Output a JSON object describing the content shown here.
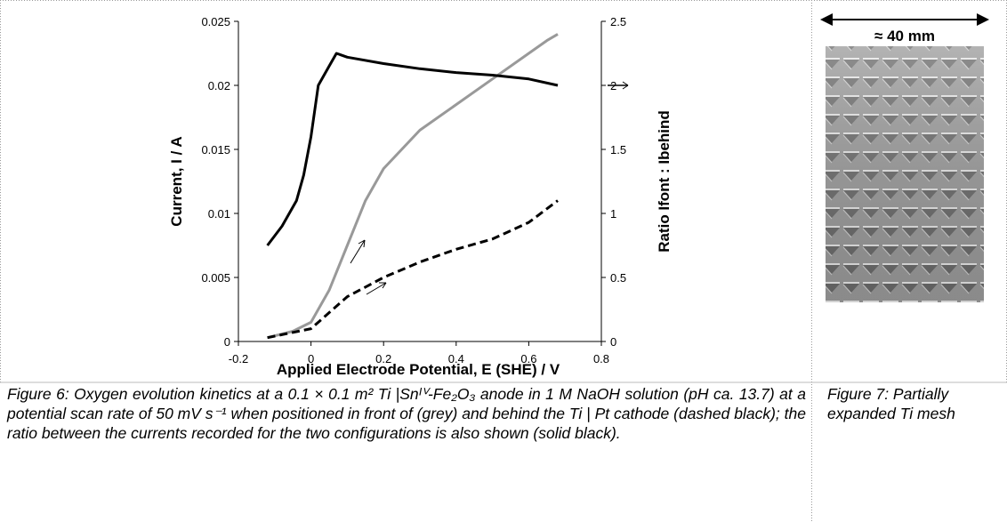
{
  "chart_data": {
    "type": "line",
    "x_label": "Applied Electrode Potential, E (SHE) / V",
    "y_label": "Current, I / A",
    "y2_label": "Ratio Ifont : Ibehind",
    "xlim": [
      -0.2,
      0.8
    ],
    "xticks": [
      -0.2,
      0,
      0.2,
      0.4,
      0.6,
      0.8
    ],
    "ylim": [
      0,
      0.025
    ],
    "yticks": [
      0,
      0.005,
      0.01,
      0.015,
      0.02,
      0.025
    ],
    "y2lim": [
      0,
      2.5
    ],
    "y2ticks": [
      0,
      0.5,
      1,
      1.5,
      2,
      2.5
    ],
    "series": [
      {
        "color": "#999999",
        "dash": false,
        "x": [
          -0.12,
          -0.05,
          0,
          0.05,
          0.1,
          0.15,
          0.2,
          0.3,
          0.4,
          0.5,
          0.6,
          0.65,
          0.68
        ],
        "values": [
          0.0003,
          0.0008,
          0.0015,
          0.004,
          0.0075,
          0.011,
          0.0135,
          0.0165,
          0.0185,
          0.0205,
          0.0225,
          0.0235,
          0.024
        ]
      },
      {
        "color": "#000000",
        "dash": true,
        "x": [
          -0.12,
          0,
          0.1,
          0.2,
          0.3,
          0.4,
          0.5,
          0.6,
          0.68
        ],
        "values": [
          0.0003,
          0.001,
          0.0035,
          0.005,
          0.0062,
          0.0072,
          0.008,
          0.0093,
          0.011
        ]
      },
      {
        "color": "#000000",
        "dash": false,
        "axis": "y2",
        "x": [
          -0.12,
          -0.08,
          -0.04,
          -0.02,
          0,
          0.02,
          0.05,
          0.07,
          0.1,
          0.2,
          0.3,
          0.4,
          0.5,
          0.6,
          0.68
        ],
        "values": [
          0.75,
          0.9,
          1.1,
          1.3,
          1.6,
          2.0,
          2.15,
          2.25,
          2.22,
          2.17,
          2.13,
          2.1,
          2.08,
          2.05,
          2.0
        ]
      }
    ]
  },
  "image": {
    "label": "≈ 40 mm"
  },
  "captions": {
    "figure6": "Figure 6:  Oxygen evolution kinetics at a 0.1 × 0.1 m² Ti |Snᴵⱽ-Fe₂O₃ anode in 1 M NaOH solution (pH ca. 13.7) at a potential scan rate of 50 mV s⁻¹ when positioned in front of (grey) and behind the Ti | Pt cathode (dashed black); the ratio between the currents recorded for the two configurations is also shown (solid black).",
    "figure7": "Figure 7: Partially expanded Ti mesh"
  }
}
